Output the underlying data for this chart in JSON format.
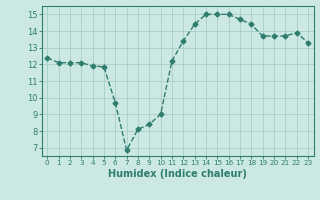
{
  "x": [
    0,
    1,
    2,
    3,
    4,
    5,
    6,
    7,
    8,
    9,
    10,
    11,
    12,
    13,
    14,
    15,
    16,
    17,
    18,
    19,
    20,
    21,
    22,
    23
  ],
  "y": [
    12.4,
    12.1,
    12.1,
    12.1,
    11.9,
    11.85,
    9.7,
    6.85,
    8.1,
    8.4,
    9.0,
    12.2,
    13.4,
    14.4,
    15.0,
    15.0,
    15.0,
    14.7,
    14.4,
    13.7,
    13.7,
    13.7,
    13.9,
    13.3
  ],
  "line_color": "#2e7d6e",
  "marker": "D",
  "markersize": 2.5,
  "linewidth": 1.0,
  "xlabel": "Humidex (Indice chaleur)",
  "xlim": [
    -0.5,
    23.5
  ],
  "ylim": [
    6.5,
    15.5
  ],
  "yticks": [
    7,
    8,
    9,
    10,
    11,
    12,
    13,
    14,
    15
  ],
  "xticks": [
    0,
    1,
    2,
    3,
    4,
    5,
    6,
    7,
    8,
    9,
    10,
    11,
    12,
    13,
    14,
    15,
    16,
    17,
    18,
    19,
    20,
    21,
    22,
    23
  ],
  "xtick_labels": [
    "0",
    "1",
    "2",
    "3",
    "4",
    "5",
    "6",
    "7",
    "8",
    "9",
    "10",
    "11",
    "12",
    "13",
    "14",
    "15",
    "16",
    "17",
    "18",
    "19",
    "20",
    "21",
    "22",
    "23"
  ],
  "bg_color": "#cce8e2",
  "grid_color": "#aaccca",
  "linestyle": "--"
}
